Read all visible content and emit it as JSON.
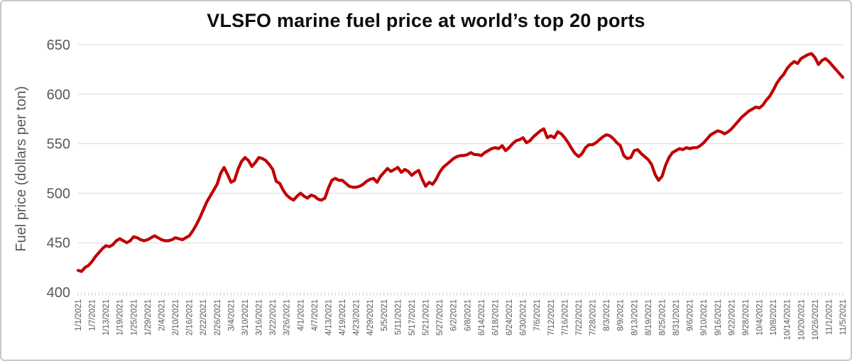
{
  "title": "VLSFO marine fuel price at world’s top 20 ports",
  "colors": {
    "line": "#c00000",
    "grid": "#d9d9d9",
    "tick": "#cfcfcf",
    "axis_text": "#595959",
    "title_text": "#0d0d0d",
    "border": "#c9c9c9"
  },
  "chart_data": {
    "type": "line",
    "title": "VLSFO marine fuel price at world’s top 20 ports",
    "xlabel": "",
    "ylabel": "Fuel price  (dollars per ton)",
    "ylim": [
      400,
      650
    ],
    "y_ticks": [
      650,
      600,
      550,
      500,
      450,
      400
    ],
    "grid": "horizontal",
    "legend": "none",
    "x_tick_labels": [
      "1/1/2021",
      "1/7/2021",
      "1/13/2021",
      "1/19/2021",
      "1/25/2021",
      "1/29/2021",
      "2/4/2021",
      "2/10/2021",
      "2/16/2021",
      "2/22/2021",
      "2/26/2021",
      "3/4/2021",
      "3/10/2021",
      "3/16/2021",
      "3/22/2021",
      "3/26/2021",
      "4/1/2021",
      "4/7/2021",
      "4/13/2021",
      "4/19/2021",
      "4/23/2021",
      "4/29/2021",
      "5/5/2021",
      "5/11/2021",
      "5/17/2021",
      "5/21/2021",
      "5/27/2021",
      "6/2/2021",
      "6/8/2021",
      "6/14/2021",
      "6/18/2021",
      "6/24/2021",
      "6/30/2021",
      "7/6/2021",
      "7/12/2021",
      "7/16/2021",
      "7/22/2021",
      "7/28/2021",
      "8/3/2021",
      "8/9/2021",
      "8/13/2021",
      "8/19/2021",
      "8/25/2021",
      "8/31/2021",
      "9/6/2021",
      "9/10/2021",
      "9/16/2021",
      "9/22/2021",
      "9/28/2021",
      "10/4/2021",
      "10/8/2021",
      "10/14/2021",
      "10/20/2021",
      "10/26/2021",
      "11/1/2021",
      "11/5/2021"
    ],
    "x_tick_every": 4,
    "x": [
      "1/1/2021",
      "1/4/2021",
      "1/5/2021",
      "1/6/2021",
      "1/7/2021",
      "1/8/2021",
      "1/11/2021",
      "1/12/2021",
      "1/13/2021",
      "1/14/2021",
      "1/15/2021",
      "1/18/2021",
      "1/19/2021",
      "1/20/2021",
      "1/21/2021",
      "1/22/2021",
      "1/25/2021",
      "1/26/2021",
      "1/27/2021",
      "1/28/2021",
      "1/29/2021",
      "2/1/2021",
      "2/2/2021",
      "2/3/2021",
      "2/4/2021",
      "2/5/2021",
      "2/8/2021",
      "2/9/2021",
      "2/10/2021",
      "2/11/2021",
      "2/12/2021",
      "2/15/2021",
      "2/16/2021",
      "2/17/2021",
      "2/18/2021",
      "2/19/2021",
      "2/22/2021",
      "2/23/2021",
      "2/24/2021",
      "2/25/2021",
      "2/26/2021",
      "3/1/2021",
      "3/2/2021",
      "3/3/2021",
      "3/4/2021",
      "3/5/2021",
      "3/8/2021",
      "3/9/2021",
      "3/10/2021",
      "3/11/2021",
      "3/12/2021",
      "3/15/2021",
      "3/16/2021",
      "3/17/2021",
      "3/18/2021",
      "3/19/2021",
      "3/22/2021",
      "3/23/2021",
      "3/24/2021",
      "3/25/2021",
      "3/26/2021",
      "3/29/2021",
      "3/30/2021",
      "3/31/2021",
      "4/1/2021",
      "4/2/2021",
      "4/5/2021",
      "4/6/2021",
      "4/7/2021",
      "4/8/2021",
      "4/9/2021",
      "4/12/2021",
      "4/13/2021",
      "4/14/2021",
      "4/15/2021",
      "4/16/2021",
      "4/19/2021",
      "4/20/2021",
      "4/21/2021",
      "4/22/2021",
      "4/23/2021",
      "4/26/2021",
      "4/27/2021",
      "4/28/2021",
      "4/29/2021",
      "4/30/2021",
      "5/3/2021",
      "5/4/2021",
      "5/5/2021",
      "5/6/2021",
      "5/7/2021",
      "5/10/2021",
      "5/11/2021",
      "5/12/2021",
      "5/13/2021",
      "5/14/2021",
      "5/17/2021",
      "5/18/2021",
      "5/19/2021",
      "5/20/2021",
      "5/21/2021",
      "5/24/2021",
      "5/25/2021",
      "5/26/2021",
      "5/27/2021",
      "5/28/2021",
      "5/31/2021",
      "6/1/2021",
      "6/2/2021",
      "6/3/2021",
      "6/4/2021",
      "6/7/2021",
      "6/8/2021",
      "6/9/2021",
      "6/10/2021",
      "6/11/2021",
      "6/14/2021",
      "6/15/2021",
      "6/16/2021",
      "6/17/2021",
      "6/18/2021",
      "6/21/2021",
      "6/22/2021",
      "6/23/2021",
      "6/24/2021",
      "6/25/2021",
      "6/28/2021",
      "6/29/2021",
      "6/30/2021",
      "7/1/2021",
      "7/2/2021",
      "7/5/2021",
      "7/6/2021",
      "7/7/2021",
      "7/8/2021",
      "7/9/2021",
      "7/12/2021",
      "7/13/2021",
      "7/14/2021",
      "7/15/2021",
      "7/16/2021",
      "7/19/2021",
      "7/20/2021",
      "7/21/2021",
      "7/22/2021",
      "7/23/2021",
      "7/26/2021",
      "7/27/2021",
      "7/28/2021",
      "7/29/2021",
      "7/30/2021",
      "8/2/2021",
      "8/3/2021",
      "8/4/2021",
      "8/5/2021",
      "8/6/2021",
      "8/9/2021",
      "8/10/2021",
      "8/11/2021",
      "8/12/2021",
      "8/13/2021",
      "8/16/2021",
      "8/17/2021",
      "8/18/2021",
      "8/19/2021",
      "8/20/2021",
      "8/23/2021",
      "8/24/2021",
      "8/25/2021",
      "8/26/2021",
      "8/27/2021",
      "8/30/2021",
      "8/31/2021",
      "9/1/2021",
      "9/2/2021",
      "9/3/2021",
      "9/6/2021",
      "9/7/2021",
      "9/8/2021",
      "9/9/2021",
      "9/10/2021",
      "9/13/2021",
      "9/14/2021",
      "9/15/2021",
      "9/16/2021",
      "9/17/2021",
      "9/20/2021",
      "9/21/2021",
      "9/22/2021",
      "9/23/2021",
      "9/24/2021",
      "9/27/2021",
      "9/28/2021",
      "9/29/2021",
      "9/30/2021",
      "10/1/2021",
      "10/4/2021",
      "10/5/2021",
      "10/6/2021",
      "10/7/2021",
      "10/8/2021",
      "10/11/2021",
      "10/12/2021",
      "10/13/2021",
      "10/14/2021",
      "10/15/2021",
      "10/18/2021",
      "10/19/2021",
      "10/20/2021",
      "10/21/2021",
      "10/22/2021",
      "10/25/2021",
      "10/26/2021",
      "10/27/2021",
      "10/28/2021",
      "10/29/2021",
      "11/1/2021",
      "11/2/2021",
      "11/3/2021",
      "11/4/2021",
      "11/5/2021"
    ],
    "values": [
      422,
      421,
      425,
      427,
      431,
      436,
      440,
      444,
      447,
      446,
      448,
      452,
      454,
      452,
      450,
      452,
      456,
      455,
      453,
      452,
      453,
      455,
      457,
      455,
      453,
      452,
      452,
      453,
      455,
      454,
      453,
      455,
      457,
      462,
      468,
      475,
      483,
      491,
      497,
      503,
      509,
      520,
      526,
      519,
      511,
      513,
      524,
      532,
      536,
      533,
      527,
      531,
      536,
      535,
      533,
      529,
      524,
      512,
      510,
      503,
      498,
      495,
      493,
      497,
      500,
      497,
      495,
      498,
      497,
      494,
      493,
      495,
      505,
      513,
      515,
      513,
      513,
      510,
      507,
      506,
      506,
      507,
      509,
      512,
      514,
      515,
      511,
      517,
      521,
      525,
      522,
      524,
      526,
      521,
      524,
      522,
      518,
      521,
      523,
      514,
      507,
      511,
      509,
      514,
      521,
      526,
      529,
      532,
      535,
      537,
      538,
      538,
      539,
      541,
      539,
      539,
      538,
      541,
      543,
      545,
      546,
      545,
      548,
      543,
      546,
      550,
      553,
      554,
      556,
      551,
      553,
      557,
      560,
      563,
      565,
      556,
      558,
      556,
      562,
      560,
      556,
      551,
      545,
      540,
      537,
      540,
      546,
      549,
      549,
      551,
      554,
      557,
      559,
      558,
      555,
      551,
      548,
      538,
      535,
      536,
      543,
      544,
      540,
      537,
      534,
      529,
      519,
      513,
      517,
      528,
      536,
      541,
      543,
      545,
      544,
      546,
      545,
      546,
      546,
      548,
      551,
      555,
      559,
      561,
      563,
      562,
      560,
      562,
      565,
      569,
      573,
      577,
      580,
      583,
      585,
      587,
      586,
      589,
      594,
      598,
      604,
      611,
      616,
      620,
      626,
      630,
      633,
      631,
      636,
      638,
      640,
      641,
      637,
      630,
      634,
      636,
      633,
      629,
      625,
      621,
      617
    ]
  }
}
